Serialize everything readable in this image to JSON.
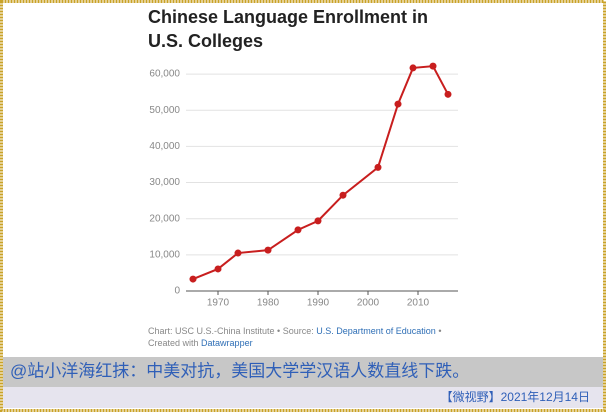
{
  "chart_data": {
    "type": "line",
    "title": [
      "Chinese Language Enrollment in",
      "U.S. Colleges"
    ],
    "x": [
      1965,
      1970,
      1974,
      1980,
      1986,
      1990,
      1995,
      2002,
      2006,
      2009,
      2013,
      2016
    ],
    "series": [
      {
        "color": "#c81e1e",
        "values": [
          3300,
          6100,
          10500,
          11300,
          16900,
          19400,
          26500,
          34200,
          51700,
          61700,
          62200,
          54400
        ]
      }
    ],
    "xlim": [
      1958,
      2018
    ],
    "xticks": [
      1970,
      1980,
      1990,
      2000,
      2010
    ],
    "ylim": [
      0,
      65000
    ],
    "yticks": [
      0,
      {
        "value": 10000,
        "label": "10,000"
      },
      {
        "value": 20000,
        "label": "20,000"
      },
      {
        "value": 30000,
        "label": "30,000"
      },
      {
        "value": 40000,
        "label": "40,000"
      },
      {
        "value": 50000,
        "label": "50,000"
      },
      {
        "value": 60000,
        "label": "60,000"
      }
    ],
    "grid": true,
    "source": {
      "text": "Chart: USC U.S.-China Institute • Source:",
      "link": "U.S. Department of Education",
      "separator": "•",
      "credit": "Created with",
      "credit_link": "Datawrapper"
    }
  },
  "caption": "@站小洋海红抹：中美对抗，美国大学学汉语人数直线下跌。",
  "footer": "【微视野】2021年12月14日"
}
